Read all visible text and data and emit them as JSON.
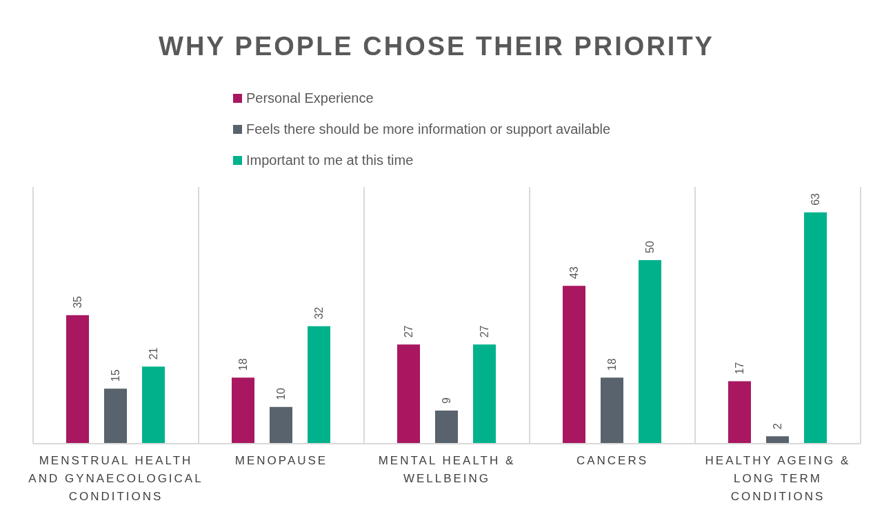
{
  "chart_data": {
    "type": "bar",
    "title": "WHY PEOPLE CHOSE THEIR PRIORITY",
    "categories": [
      "MENSTRUAL HEALTH AND GYNAECOLOGICAL CONDITIONS",
      "MENOPAUSE",
      "MENTAL HEALTH & WELLBEING",
      "CANCERS",
      "HEALTHY AGEING & LONG TERM CONDITIONS"
    ],
    "series": [
      {
        "name": "Personal Experience",
        "color": "#a8175f",
        "values": [
          35,
          18,
          27,
          43,
          17
        ]
      },
      {
        "name": "Feels there should be more information or support available",
        "color": "#59636d",
        "values": [
          15,
          10,
          9,
          18,
          2
        ]
      },
      {
        "name": "Important to me at this time",
        "color": "#00b28c",
        "values": [
          21,
          32,
          27,
          50,
          63
        ]
      }
    ],
    "data_labels": true,
    "grid": "x",
    "legend": "top"
  }
}
